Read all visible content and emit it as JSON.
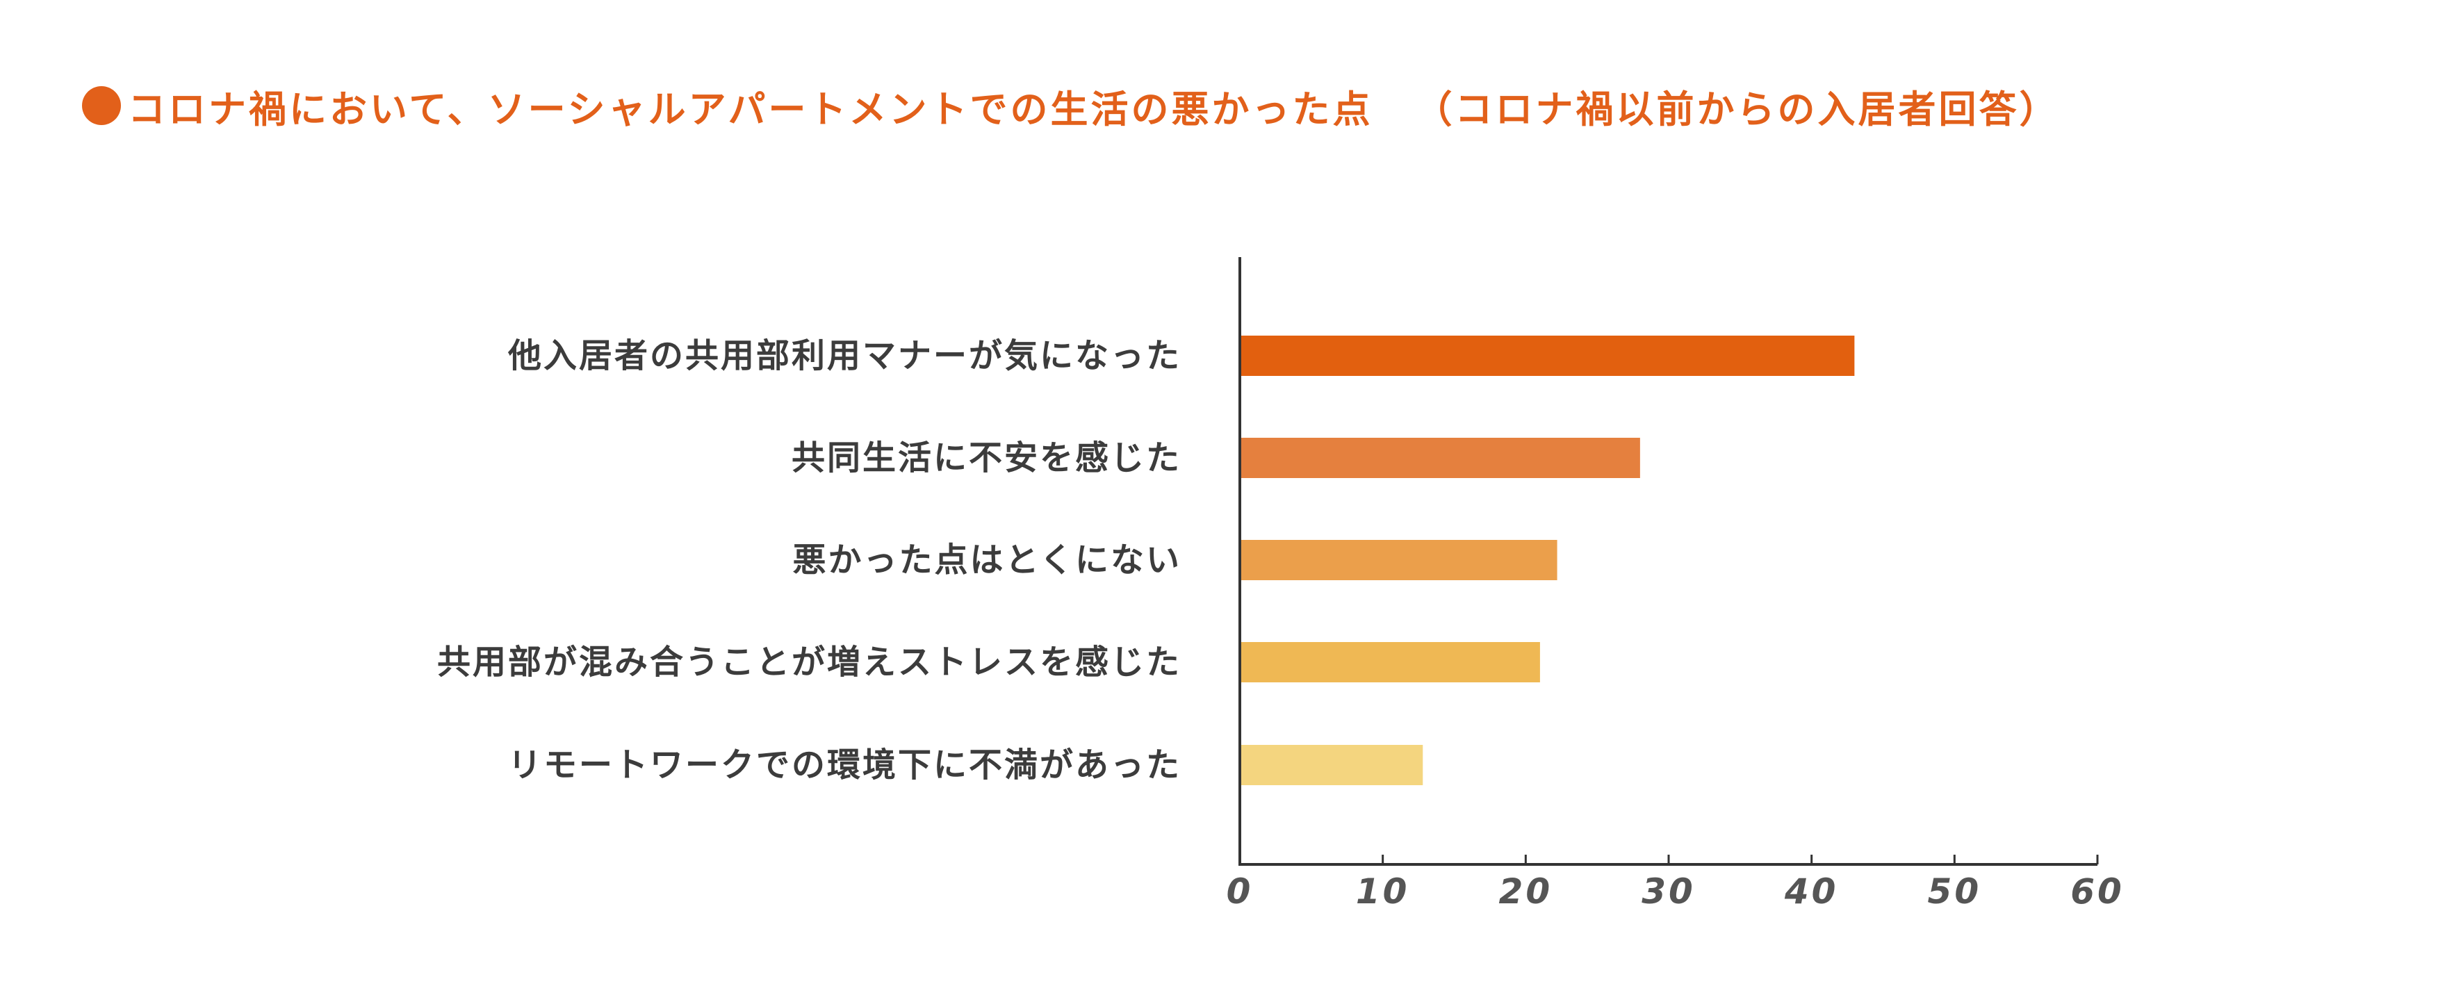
{
  "title": {
    "main": "コロナ禍において、ソーシャルアパートメントでの生活の悪かった点",
    "subtitle": "（コロナ禍以前からの入居者回答）"
  },
  "colors": {
    "title": "#e2601a",
    "axis": "#333333",
    "label": "#3c3c3c",
    "tick": "#555555"
  },
  "chart_data": {
    "type": "bar",
    "orientation": "horizontal",
    "categories": [
      "他入居者の共用部利用マナーが気になった",
      "共同生活に不安を感じた",
      "悪かった点はとくにない",
      "共用部が混み合うことが増えストレスを感じた",
      "リモートワークでの環境下に不満があった"
    ],
    "values": [
      43,
      28,
      22.2,
      21,
      12.8
    ],
    "bar_colors": [
      "#e2600f",
      "#e5803e",
      "#eb9f4b",
      "#efb854",
      "#f4d57f"
    ],
    "xlim": [
      0,
      60
    ],
    "ticks": [
      "0",
      "10",
      "20",
      "30",
      "40",
      "50",
      "60"
    ],
    "grid": false,
    "legend": "none"
  }
}
